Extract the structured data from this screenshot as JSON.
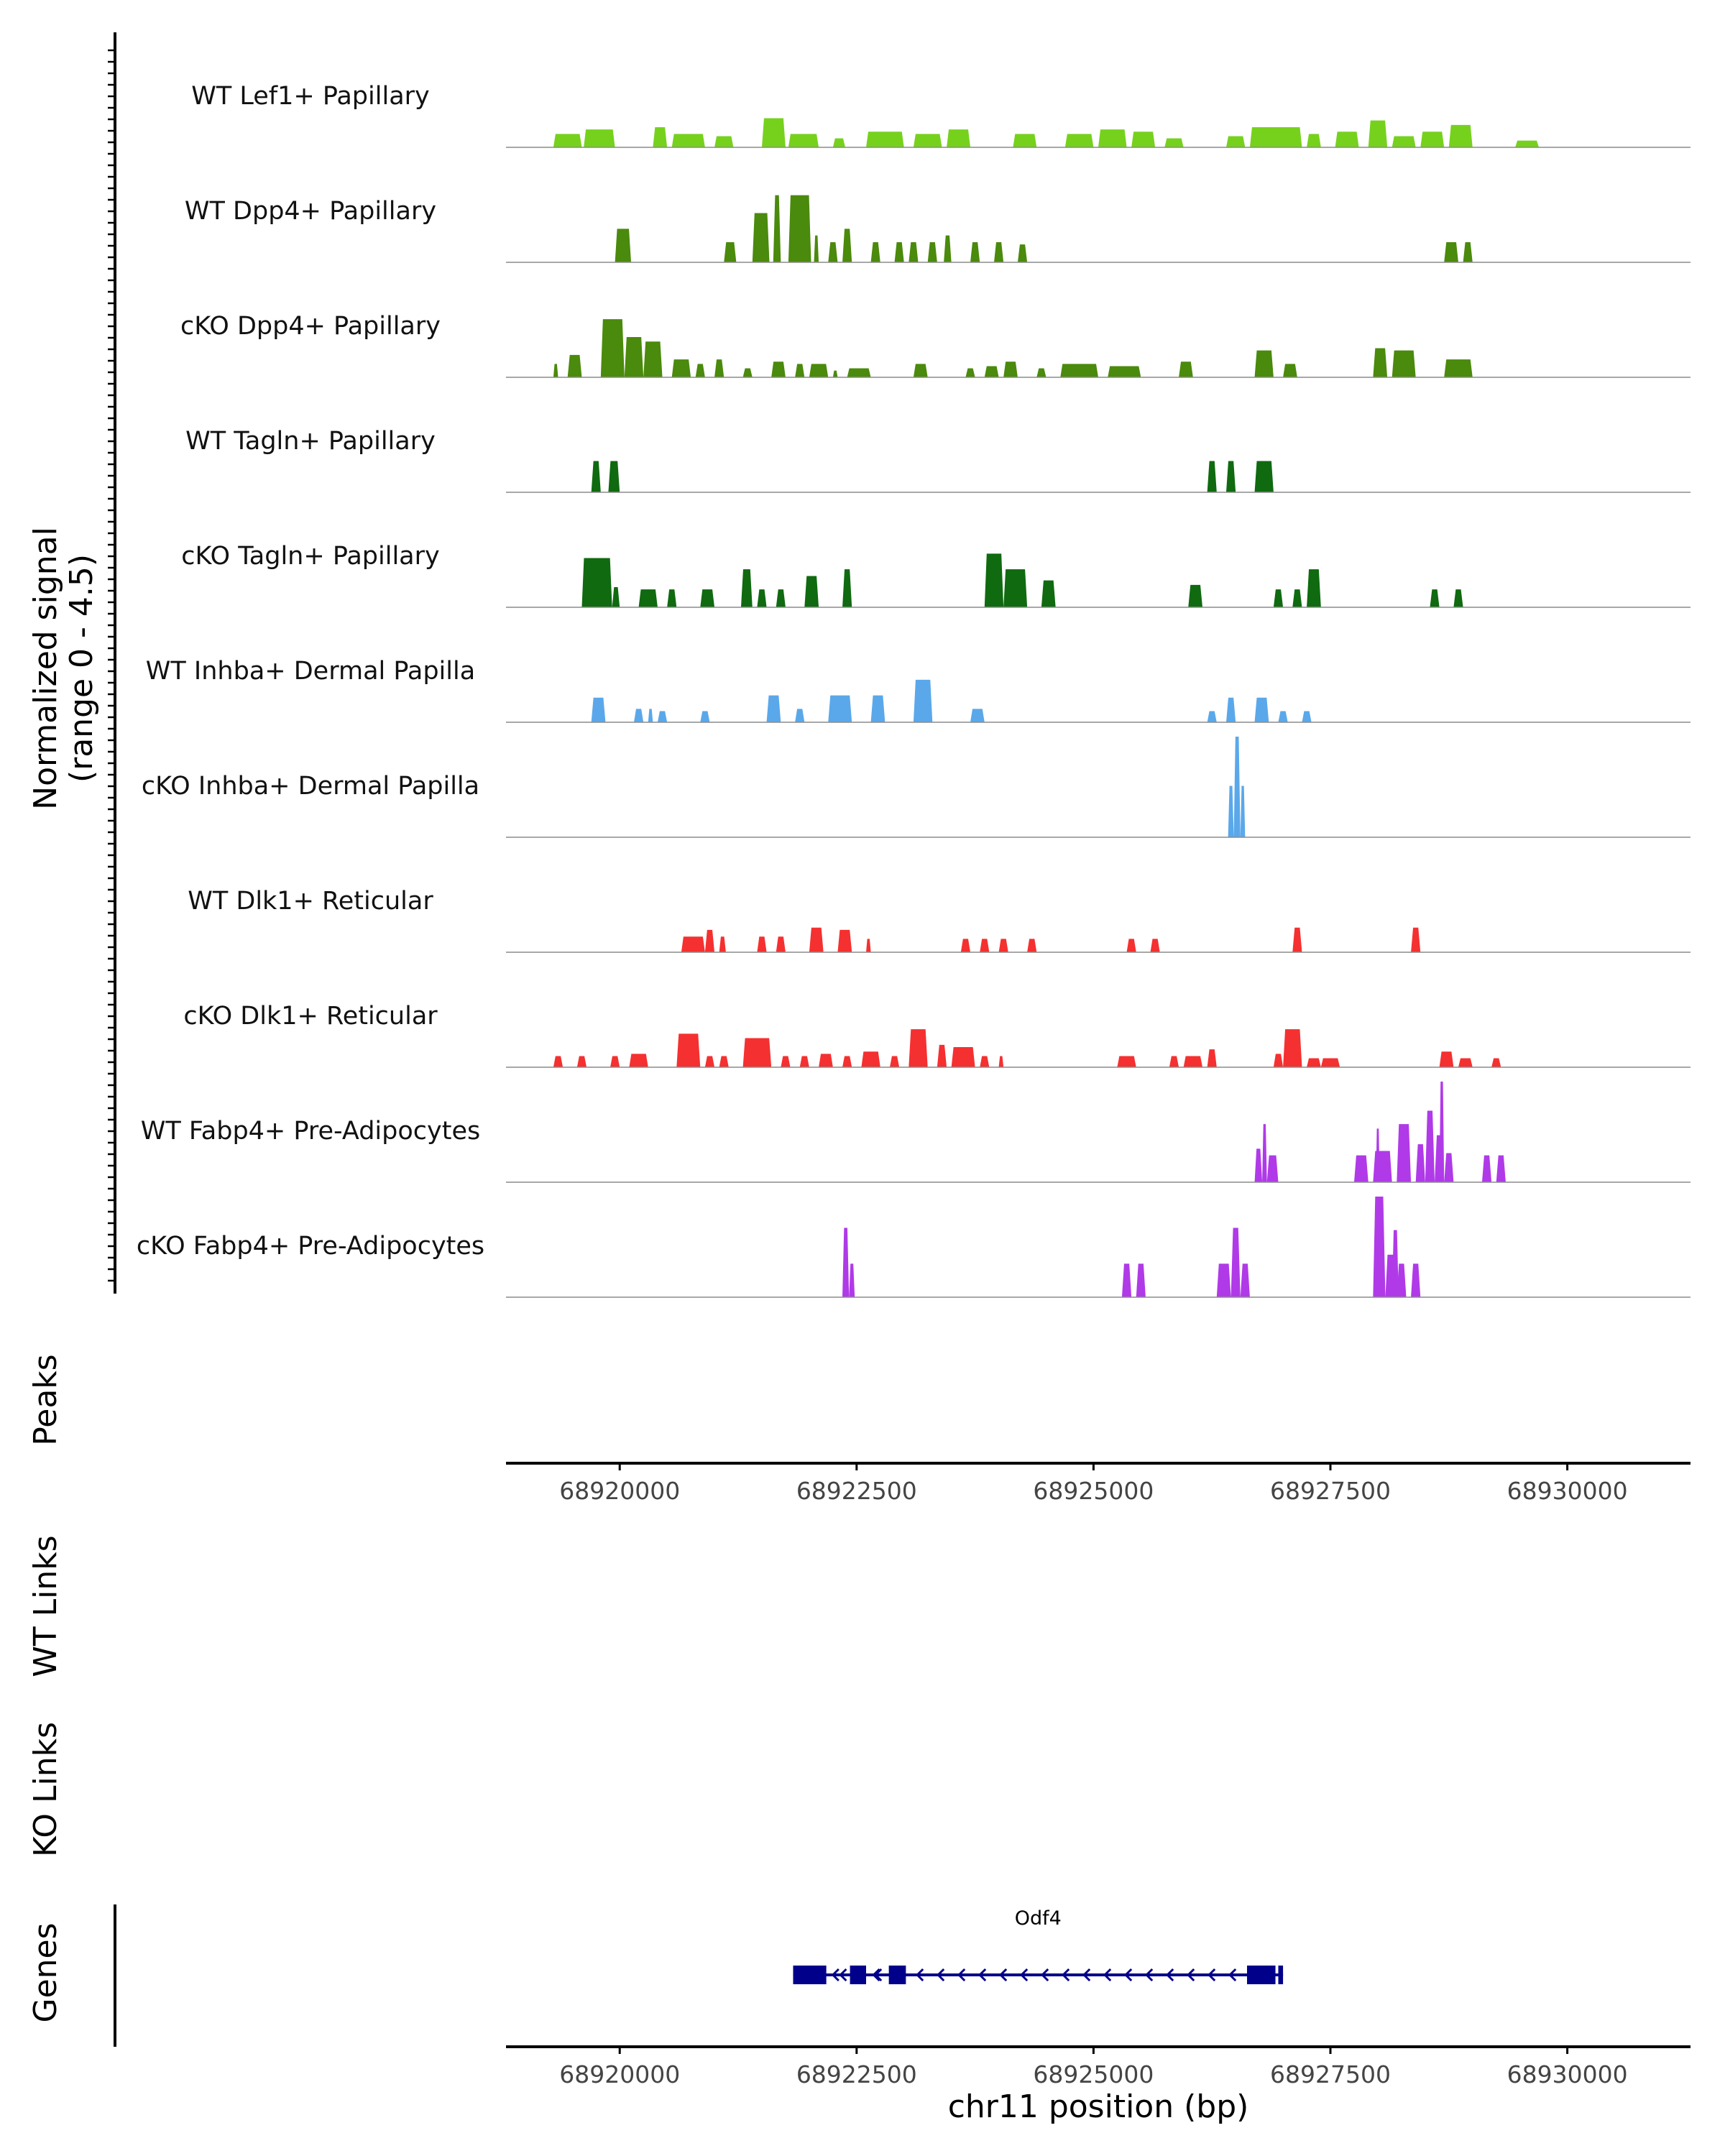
{
  "chart_data": {
    "type": "area",
    "title": "",
    "chromosome": "chr11",
    "xlabel": "chr11 position (bp)",
    "xlim": [
      68918800,
      68931300
    ],
    "xticks": [
      68920000,
      68922500,
      68925000,
      68927500,
      68930000
    ],
    "xtick_labels": [
      "68920000",
      "68922500",
      "68925000",
      "68927500",
      "68930000"
    ],
    "coverage_ylabel_line1": "Normalized signal",
    "coverage_ylabel_line2": "(range 0 - 4.5)",
    "ylim": [
      0,
      4.5
    ],
    "panel_labels": {
      "peaks": "Peaks",
      "wt_links": "WT Links",
      "ko_links": "KO Links",
      "genes": "Genes"
    },
    "colors": {
      "lef1": "#76d11d",
      "dpp4": "#4a8a0c",
      "tagln": "#0f6a10",
      "inhba": "#5aa8ea",
      "dlk1": "#f53030",
      "fabp4": "#b03ae8",
      "gene": "#00008b",
      "baseline": "#8c8c8c",
      "axis": "#000000"
    },
    "tracks": [
      {
        "name": "WT Lef1+ Papillary",
        "color": "#76d11d",
        "intervals": [
          [
            68919300,
            68919600,
            0.6
          ],
          [
            68919620,
            68919950,
            0.8
          ],
          [
            68920350,
            68920500,
            0.9
          ],
          [
            68920550,
            68920900,
            0.6
          ],
          [
            68921000,
            68921200,
            0.5
          ],
          [
            68921500,
            68921750,
            1.3
          ],
          [
            68921780,
            68922100,
            0.6
          ],
          [
            68922250,
            68922380,
            0.4
          ],
          [
            68922600,
            68923000,
            0.7
          ],
          [
            68923100,
            68923400,
            0.6
          ],
          [
            68923450,
            68923700,
            0.8
          ],
          [
            68924150,
            68924400,
            0.6
          ],
          [
            68924700,
            68925000,
            0.6
          ],
          [
            68925050,
            68925350,
            0.8
          ],
          [
            68925400,
            68925650,
            0.7
          ],
          [
            68925750,
            68925950,
            0.4
          ],
          [
            68926400,
            68926600,
            0.5
          ],
          [
            68926650,
            68927200,
            0.9
          ],
          [
            68927250,
            68927400,
            0.6
          ],
          [
            68927550,
            68927800,
            0.7
          ],
          [
            68927900,
            68928100,
            1.2
          ],
          [
            68928150,
            68928400,
            0.5
          ],
          [
            68928450,
            68928700,
            0.7
          ],
          [
            68928750,
            68929000,
            1.0
          ],
          [
            68929450,
            68929700,
            0.3
          ]
        ]
      },
      {
        "name": "WT Dpp4+ Papillary",
        "color": "#4a8a0c",
        "intervals": [
          [
            68919950,
            68920120,
            1.5
          ],
          [
            68921100,
            68921230,
            0.9
          ],
          [
            68921400,
            68921580,
            2.2
          ],
          [
            68921620,
            68921700,
            3.0
          ],
          [
            68921780,
            68922020,
            3.0
          ],
          [
            68922050,
            68922100,
            1.2
          ],
          [
            68922200,
            68922300,
            0.9
          ],
          [
            68922350,
            68922450,
            1.5
          ],
          [
            68922650,
            68922750,
            0.9
          ],
          [
            68922900,
            68923000,
            0.9
          ],
          [
            68923050,
            68923150,
            0.9
          ],
          [
            68923250,
            68923350,
            0.9
          ],
          [
            68923420,
            68923500,
            1.2
          ],
          [
            68923700,
            68923800,
            0.9
          ],
          [
            68923950,
            68924050,
            0.9
          ],
          [
            68924200,
            68924300,
            0.8
          ],
          [
            68928700,
            68928850,
            0.9
          ],
          [
            68928900,
            68929000,
            0.9
          ]
        ]
      },
      {
        "name": "cKO Dpp4+ Papillary",
        "color": "#4a8a0c",
        "intervals": [
          [
            68919300,
            68919350,
            0.6
          ],
          [
            68919450,
            68919600,
            1.0
          ],
          [
            68919800,
            68920050,
            2.6
          ],
          [
            68920050,
            68920250,
            1.8
          ],
          [
            68920250,
            68920450,
            1.6
          ],
          [
            68920550,
            68920750,
            0.8
          ],
          [
            68920800,
            68920900,
            0.6
          ],
          [
            68921000,
            68921100,
            0.8
          ],
          [
            68921300,
            68921400,
            0.4
          ],
          [
            68921600,
            68921750,
            0.7
          ],
          [
            68921850,
            68921950,
            0.6
          ],
          [
            68922000,
            68922200,
            0.6
          ],
          [
            68922250,
            68922300,
            0.3
          ],
          [
            68922400,
            68922650,
            0.4
          ],
          [
            68923100,
            68923250,
            0.6
          ],
          [
            68923650,
            68923750,
            0.4
          ],
          [
            68923850,
            68924000,
            0.5
          ],
          [
            68924050,
            68924200,
            0.7
          ],
          [
            68924400,
            68924500,
            0.4
          ],
          [
            68924650,
            68925050,
            0.6
          ],
          [
            68925150,
            68925500,
            0.5
          ],
          [
            68925900,
            68926050,
            0.7
          ],
          [
            68926700,
            68926900,
            1.2
          ],
          [
            68927000,
            68927150,
            0.6
          ],
          [
            68927950,
            68928100,
            1.3
          ],
          [
            68928150,
            68928400,
            1.2
          ],
          [
            68928700,
            68929000,
            0.8
          ]
        ]
      },
      {
        "name": "WT Tagln+ Papillary",
        "color": "#0f6a10",
        "intervals": [
          [
            68919700,
            68919800,
            1.4
          ],
          [
            68919880,
            68920000,
            1.4
          ],
          [
            68926200,
            68926300,
            1.4
          ],
          [
            68926400,
            68926500,
            1.4
          ],
          [
            68926700,
            68926900,
            1.4
          ]
        ]
      },
      {
        "name": "cKO Tagln+ Papillary",
        "color": "#0f6a10",
        "intervals": [
          [
            68919600,
            68919920,
            2.2
          ],
          [
            68919920,
            68920000,
            0.9
          ],
          [
            68920200,
            68920400,
            0.8
          ],
          [
            68920500,
            68920600,
            0.8
          ],
          [
            68920850,
            68921000,
            0.8
          ],
          [
            68921280,
            68921400,
            1.7
          ],
          [
            68921450,
            68921550,
            0.8
          ],
          [
            68921650,
            68921750,
            0.8
          ],
          [
            68921950,
            68922100,
            1.4
          ],
          [
            68922350,
            68922450,
            1.7
          ],
          [
            68923850,
            68924050,
            2.4
          ],
          [
            68924050,
            68924300,
            1.7
          ],
          [
            68924450,
            68924600,
            1.2
          ],
          [
            68926000,
            68926150,
            1.0
          ],
          [
            68926900,
            68927000,
            0.8
          ],
          [
            68927100,
            68927200,
            0.8
          ],
          [
            68927250,
            68927400,
            1.7
          ],
          [
            68928550,
            68928650,
            0.8
          ],
          [
            68928800,
            68928900,
            0.8
          ]
        ]
      },
      {
        "name": "WT Inhba+ Dermal Papilla",
        "color": "#5aa8ea",
        "intervals": [
          [
            68919700,
            68919850,
            1.1
          ],
          [
            68920150,
            68920250,
            0.6
          ],
          [
            68920300,
            68920350,
            0.6
          ],
          [
            68920400,
            68920500,
            0.5
          ],
          [
            68920850,
            68920950,
            0.5
          ],
          [
            68921550,
            68921700,
            1.2
          ],
          [
            68921850,
            68921950,
            0.6
          ],
          [
            68922200,
            68922450,
            1.2
          ],
          [
            68922650,
            68922800,
            1.2
          ],
          [
            68923100,
            68923300,
            1.9
          ],
          [
            68923700,
            68923850,
            0.6
          ],
          [
            68926200,
            68926300,
            0.5
          ],
          [
            68926400,
            68926500,
            1.1
          ],
          [
            68926700,
            68926850,
            1.1
          ],
          [
            68926950,
            68927050,
            0.5
          ],
          [
            68927200,
            68927300,
            0.5
          ]
        ]
      },
      {
        "name": "cKO Inhba+ Dermal Papilla",
        "color": "#5aa8ea",
        "intervals": [
          [
            68926420,
            68926480,
            2.3
          ],
          [
            68926480,
            68926550,
            4.5
          ],
          [
            68926550,
            68926600,
            2.3
          ]
        ]
      },
      {
        "name": "WT Dlk1+ Reticular",
        "color": "#f53030",
        "intervals": [
          [
            68920650,
            68920900,
            0.7
          ],
          [
            68920900,
            68921000,
            1.0
          ],
          [
            68921050,
            68921120,
            0.7
          ],
          [
            68921450,
            68921550,
            0.7
          ],
          [
            68921650,
            68921750,
            0.7
          ],
          [
            68922000,
            68922150,
            1.1
          ],
          [
            68922300,
            68922450,
            1.0
          ],
          [
            68922600,
            68922650,
            0.6
          ],
          [
            68923600,
            68923700,
            0.6
          ],
          [
            68923800,
            68923900,
            0.6
          ],
          [
            68924000,
            68924100,
            0.6
          ],
          [
            68924300,
            68924400,
            0.6
          ],
          [
            68925350,
            68925450,
            0.6
          ],
          [
            68925600,
            68925700,
            0.6
          ],
          [
            68927100,
            68927200,
            1.1
          ],
          [
            68928350,
            68928450,
            1.1
          ]
        ]
      },
      {
        "name": "cKO Dlk1+ Reticular",
        "color": "#f53030",
        "intervals": [
          [
            68919300,
            68919400,
            0.5
          ],
          [
            68919550,
            68919650,
            0.5
          ],
          [
            68919900,
            68920000,
            0.5
          ],
          [
            68920100,
            68920300,
            0.6
          ],
          [
            68920600,
            68920850,
            1.5
          ],
          [
            68920900,
            68921000,
            0.5
          ],
          [
            68921050,
            68921150,
            0.5
          ],
          [
            68921300,
            68921600,
            1.3
          ],
          [
            68921700,
            68921800,
            0.5
          ],
          [
            68921900,
            68922000,
            0.5
          ],
          [
            68922100,
            68922250,
            0.6
          ],
          [
            68922350,
            68922450,
            0.5
          ],
          [
            68922550,
            68922750,
            0.7
          ],
          [
            68922850,
            68922950,
            0.5
          ],
          [
            68923050,
            68923250,
            1.7
          ],
          [
            68923350,
            68923450,
            1.0
          ],
          [
            68923500,
            68923750,
            0.9
          ],
          [
            68923800,
            68923900,
            0.5
          ],
          [
            68924000,
            68924050,
            0.5
          ],
          [
            68925250,
            68925450,
            0.5
          ],
          [
            68925800,
            68925900,
            0.5
          ],
          [
            68925950,
            68926150,
            0.5
          ],
          [
            68926200,
            68926300,
            0.8
          ],
          [
            68926900,
            68927000,
            0.6
          ],
          [
            68927000,
            68927200,
            1.7
          ],
          [
            68927250,
            68927400,
            0.4
          ],
          [
            68927400,
            68927600,
            0.4
          ],
          [
            68928650,
            68928800,
            0.7
          ],
          [
            68928850,
            68929000,
            0.4
          ],
          [
            68929200,
            68929300,
            0.4
          ]
        ]
      },
      {
        "name": "WT Fabp4+ Pre-Adipocytes",
        "color": "#b03ae8",
        "intervals": [
          [
            68926700,
            68926780,
            1.5
          ],
          [
            68926780,
            68926830,
            2.6
          ],
          [
            68926830,
            68926950,
            1.2
          ],
          [
            68927750,
            68927900,
            1.2
          ],
          [
            68927950,
            68928150,
            1.4
          ],
          [
            68927980,
            68928020,
            2.4
          ],
          [
            68928200,
            68928350,
            2.6
          ],
          [
            68928400,
            68928500,
            1.7
          ],
          [
            68928500,
            68928600,
            3.2
          ],
          [
            68928600,
            68928700,
            2.1
          ],
          [
            68928650,
            68928700,
            4.5
          ],
          [
            68928700,
            68928800,
            1.3
          ],
          [
            68929100,
            68929200,
            1.2
          ],
          [
            68929250,
            68929350,
            1.2
          ]
        ]
      },
      {
        "name": "cKO Fabp4+ Pre-Adipocytes",
        "color": "#b03ae8",
        "intervals": [
          [
            68922350,
            68922420,
            3.1
          ],
          [
            68922420,
            68922480,
            1.5
          ],
          [
            68925300,
            68925400,
            1.5
          ],
          [
            68925450,
            68925550,
            1.5
          ],
          [
            68926300,
            68926450,
            1.5
          ],
          [
            68926450,
            68926550,
            3.1
          ],
          [
            68926550,
            68926650,
            1.5
          ],
          [
            68927950,
            68928080,
            4.5
          ],
          [
            68928080,
            68928200,
            1.9
          ],
          [
            68928150,
            68928220,
            3.0
          ],
          [
            68928200,
            68928300,
            1.5
          ],
          [
            68928350,
            68928450,
            1.5
          ]
        ]
      }
    ],
    "gene": {
      "name": "Odf4",
      "start": 68921830,
      "end": 68927000,
      "strand": "-",
      "exons": [
        [
          68921830,
          68922180
        ],
        [
          68922430,
          68922600
        ],
        [
          68922840,
          68923020
        ],
        [
          68926620,
          68926920
        ],
        [
          68926950,
          68927000
        ]
      ]
    }
  }
}
